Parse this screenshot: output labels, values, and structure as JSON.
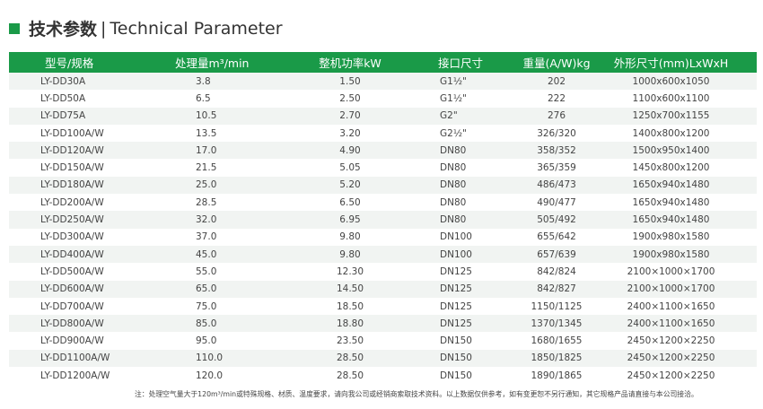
{
  "title": {
    "cn": "技术参数",
    "sep": "|",
    "en": "Technical Parameter"
  },
  "colors": {
    "accent": "#1a9a48",
    "stripe": "#f1f4f2"
  },
  "table": {
    "headers": [
      "型号/规格",
      "处理量m³/min",
      "整机功率kW",
      "接口尺寸",
      "重量(A/W)kg",
      "外形尺寸(mm)LxWxH"
    ],
    "rows": [
      [
        "LY-DD30A",
        "3.8",
        "1.50",
        "G1½\"",
        "202",
        "1000x600x1050"
      ],
      [
        "LY-DD50A",
        "6.5",
        "2.50",
        "G1½\"",
        "222",
        "1100x600x1100"
      ],
      [
        "LY-DD75A",
        "10.5",
        "2.70",
        "G2\"",
        "276",
        "1250x700x1155"
      ],
      [
        "LY-DD100A/W",
        "13.5",
        "3.20",
        "G2½\"",
        "326/320",
        "1400x800x1200"
      ],
      [
        "LY-DD120A/W",
        "17.0",
        "4.90",
        "DN80",
        "358/352",
        "1500x950x1400"
      ],
      [
        "LY-DD150A/W",
        "21.5",
        "5.05",
        "DN80",
        "365/359",
        "1450x800x1200"
      ],
      [
        "LY-DD180A/W",
        "25.0",
        "5.20",
        "DN80",
        "486/473",
        "1650x940x1480"
      ],
      [
        "LY-DD200A/W",
        "28.5",
        "6.50",
        "DN80",
        "490/477",
        "1650x940x1480"
      ],
      [
        "LY-DD250A/W",
        "32.0",
        "6.95",
        "DN80",
        "505/492",
        "1650x940x1480"
      ],
      [
        "LY-DD300A/W",
        "37.0",
        "9.80",
        "DN100",
        "655/642",
        "1900x980x1580"
      ],
      [
        "LY-DD400A/W",
        "45.0",
        "9.80",
        "DN100",
        "657/639",
        "1900x980x1580"
      ],
      [
        "LY-DD500A/W",
        "55.0",
        "12.30",
        "DN125",
        "842/824",
        "2100×1000×1700"
      ],
      [
        "LY-DD600A/W",
        "65.0",
        "14.50",
        "DN125",
        "842/827",
        "2100×1000×1700"
      ],
      [
        "LY-DD700A/W",
        "75.0",
        "18.50",
        "DN125",
        "1150/1125",
        "2400×1100×1650"
      ],
      [
        "LY-DD800A/W",
        "85.0",
        "18.80",
        "DN125",
        "1370/1345",
        "2400×1100×1650"
      ],
      [
        "LY-DD900A/W",
        "95.0",
        "23.50",
        "DN150",
        "1680/1655",
        "2450×1200×2250"
      ],
      [
        "LY-DD1100A/W",
        "110.0",
        "28.50",
        "DN150",
        "1850/1825",
        "2450×1200×2250"
      ],
      [
        "LY-DD1200A/W",
        "120.0",
        "28.50",
        "DN150",
        "1890/1865",
        "2450×1200×2250"
      ]
    ]
  },
  "note": "注：处理空气量大于120m³/min或特殊规格、材质、温度要求，请向我公司或经销商索取技术资料。以上数据仅供参考，如有变更恕不另行通知，其它规格产品请直接与本公司接洽。"
}
